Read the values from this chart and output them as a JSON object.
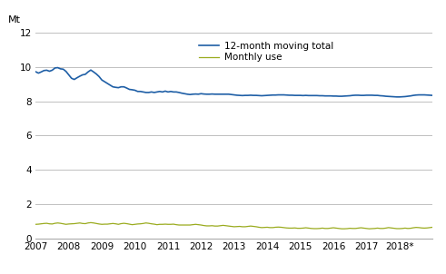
{
  "title": "",
  "ylabel_text": "Mt",
  "ylim": [
    0,
    12
  ],
  "yticks": [
    0,
    2,
    4,
    6,
    8,
    10,
    12
  ],
  "xlim_start": 2007.0,
  "xlim_end": 2019.0,
  "xtick_labels": [
    "2007",
    "2008",
    "2009",
    "2010",
    "2011",
    "2012",
    "2013",
    "2014",
    "2015",
    "2016",
    "2017",
    "2018*"
  ],
  "line1_color": "#1f5fa6",
  "line2_color": "#9aab1e",
  "legend_labels": [
    "12-month moving total",
    "Monthly use"
  ],
  "background_color": "#ffffff",
  "grid_color": "#c0c0c0",
  "moving_total": [
    9.73,
    9.65,
    9.72,
    9.8,
    9.82,
    9.76,
    9.82,
    9.95,
    9.97,
    9.9,
    9.88,
    9.75,
    9.55,
    9.35,
    9.28,
    9.38,
    9.47,
    9.55,
    9.58,
    9.72,
    9.83,
    9.72,
    9.6,
    9.45,
    9.25,
    9.15,
    9.05,
    8.95,
    8.85,
    8.82,
    8.8,
    8.85,
    8.85,
    8.78,
    8.7,
    8.68,
    8.65,
    8.58,
    8.58,
    8.55,
    8.52,
    8.52,
    8.55,
    8.52,
    8.55,
    8.58,
    8.55,
    8.6,
    8.55,
    8.58,
    8.55,
    8.55,
    8.52,
    8.48,
    8.45,
    8.42,
    8.4,
    8.42,
    8.43,
    8.42,
    8.45,
    8.43,
    8.42,
    8.42,
    8.43,
    8.42,
    8.42,
    8.42,
    8.42,
    8.42,
    8.42,
    8.4,
    8.38,
    8.36,
    8.35,
    8.34,
    8.35,
    8.35,
    8.36,
    8.35,
    8.35,
    8.34,
    8.33,
    8.34,
    8.35,
    8.36,
    8.37,
    8.37,
    8.38,
    8.38,
    8.38,
    8.37,
    8.36,
    8.36,
    8.35,
    8.35,
    8.35,
    8.34,
    8.35,
    8.34,
    8.34,
    8.34,
    8.34,
    8.33,
    8.33,
    8.32,
    8.32,
    8.32,
    8.31,
    8.31,
    8.3,
    8.3,
    8.31,
    8.32,
    8.33,
    8.35,
    8.36,
    8.36,
    8.35,
    8.35,
    8.36,
    8.36,
    8.36,
    8.35,
    8.35,
    8.33,
    8.32,
    8.3,
    8.29,
    8.28,
    8.27,
    8.26,
    8.26,
    8.27,
    8.28,
    8.3,
    8.32,
    8.35,
    8.37,
    8.38,
    8.38,
    8.38,
    8.37,
    8.36,
    8.35,
    8.35
  ],
  "monthly_use": [
    0.82,
    0.83,
    0.85,
    0.87,
    0.88,
    0.85,
    0.84,
    0.88,
    0.9,
    0.88,
    0.85,
    0.82,
    0.84,
    0.85,
    0.86,
    0.88,
    0.9,
    0.87,
    0.86,
    0.9,
    0.92,
    0.9,
    0.87,
    0.84,
    0.82,
    0.83,
    0.83,
    0.85,
    0.87,
    0.85,
    0.82,
    0.86,
    0.88,
    0.86,
    0.83,
    0.8,
    0.82,
    0.84,
    0.85,
    0.87,
    0.9,
    0.88,
    0.85,
    0.83,
    0.8,
    0.82,
    0.82,
    0.83,
    0.82,
    0.82,
    0.83,
    0.8,
    0.78,
    0.78,
    0.78,
    0.78,
    0.78,
    0.8,
    0.82,
    0.8,
    0.78,
    0.75,
    0.73,
    0.73,
    0.74,
    0.72,
    0.72,
    0.74,
    0.76,
    0.74,
    0.72,
    0.7,
    0.68,
    0.69,
    0.7,
    0.68,
    0.68,
    0.7,
    0.72,
    0.7,
    0.68,
    0.65,
    0.63,
    0.64,
    0.65,
    0.63,
    0.63,
    0.65,
    0.66,
    0.65,
    0.63,
    0.61,
    0.6,
    0.6,
    0.61,
    0.59,
    0.59,
    0.6,
    0.62,
    0.6,
    0.58,
    0.57,
    0.57,
    0.58,
    0.6,
    0.58,
    0.58,
    0.6,
    0.62,
    0.6,
    0.58,
    0.56,
    0.56,
    0.57,
    0.59,
    0.58,
    0.58,
    0.6,
    0.62,
    0.6,
    0.58,
    0.56,
    0.57,
    0.58,
    0.6,
    0.58,
    0.58,
    0.6,
    0.63,
    0.61,
    0.59,
    0.57,
    0.57,
    0.58,
    0.6,
    0.58,
    0.59,
    0.62,
    0.64,
    0.63,
    0.61,
    0.6,
    0.61,
    0.63,
    0.65,
    0.64
  ]
}
